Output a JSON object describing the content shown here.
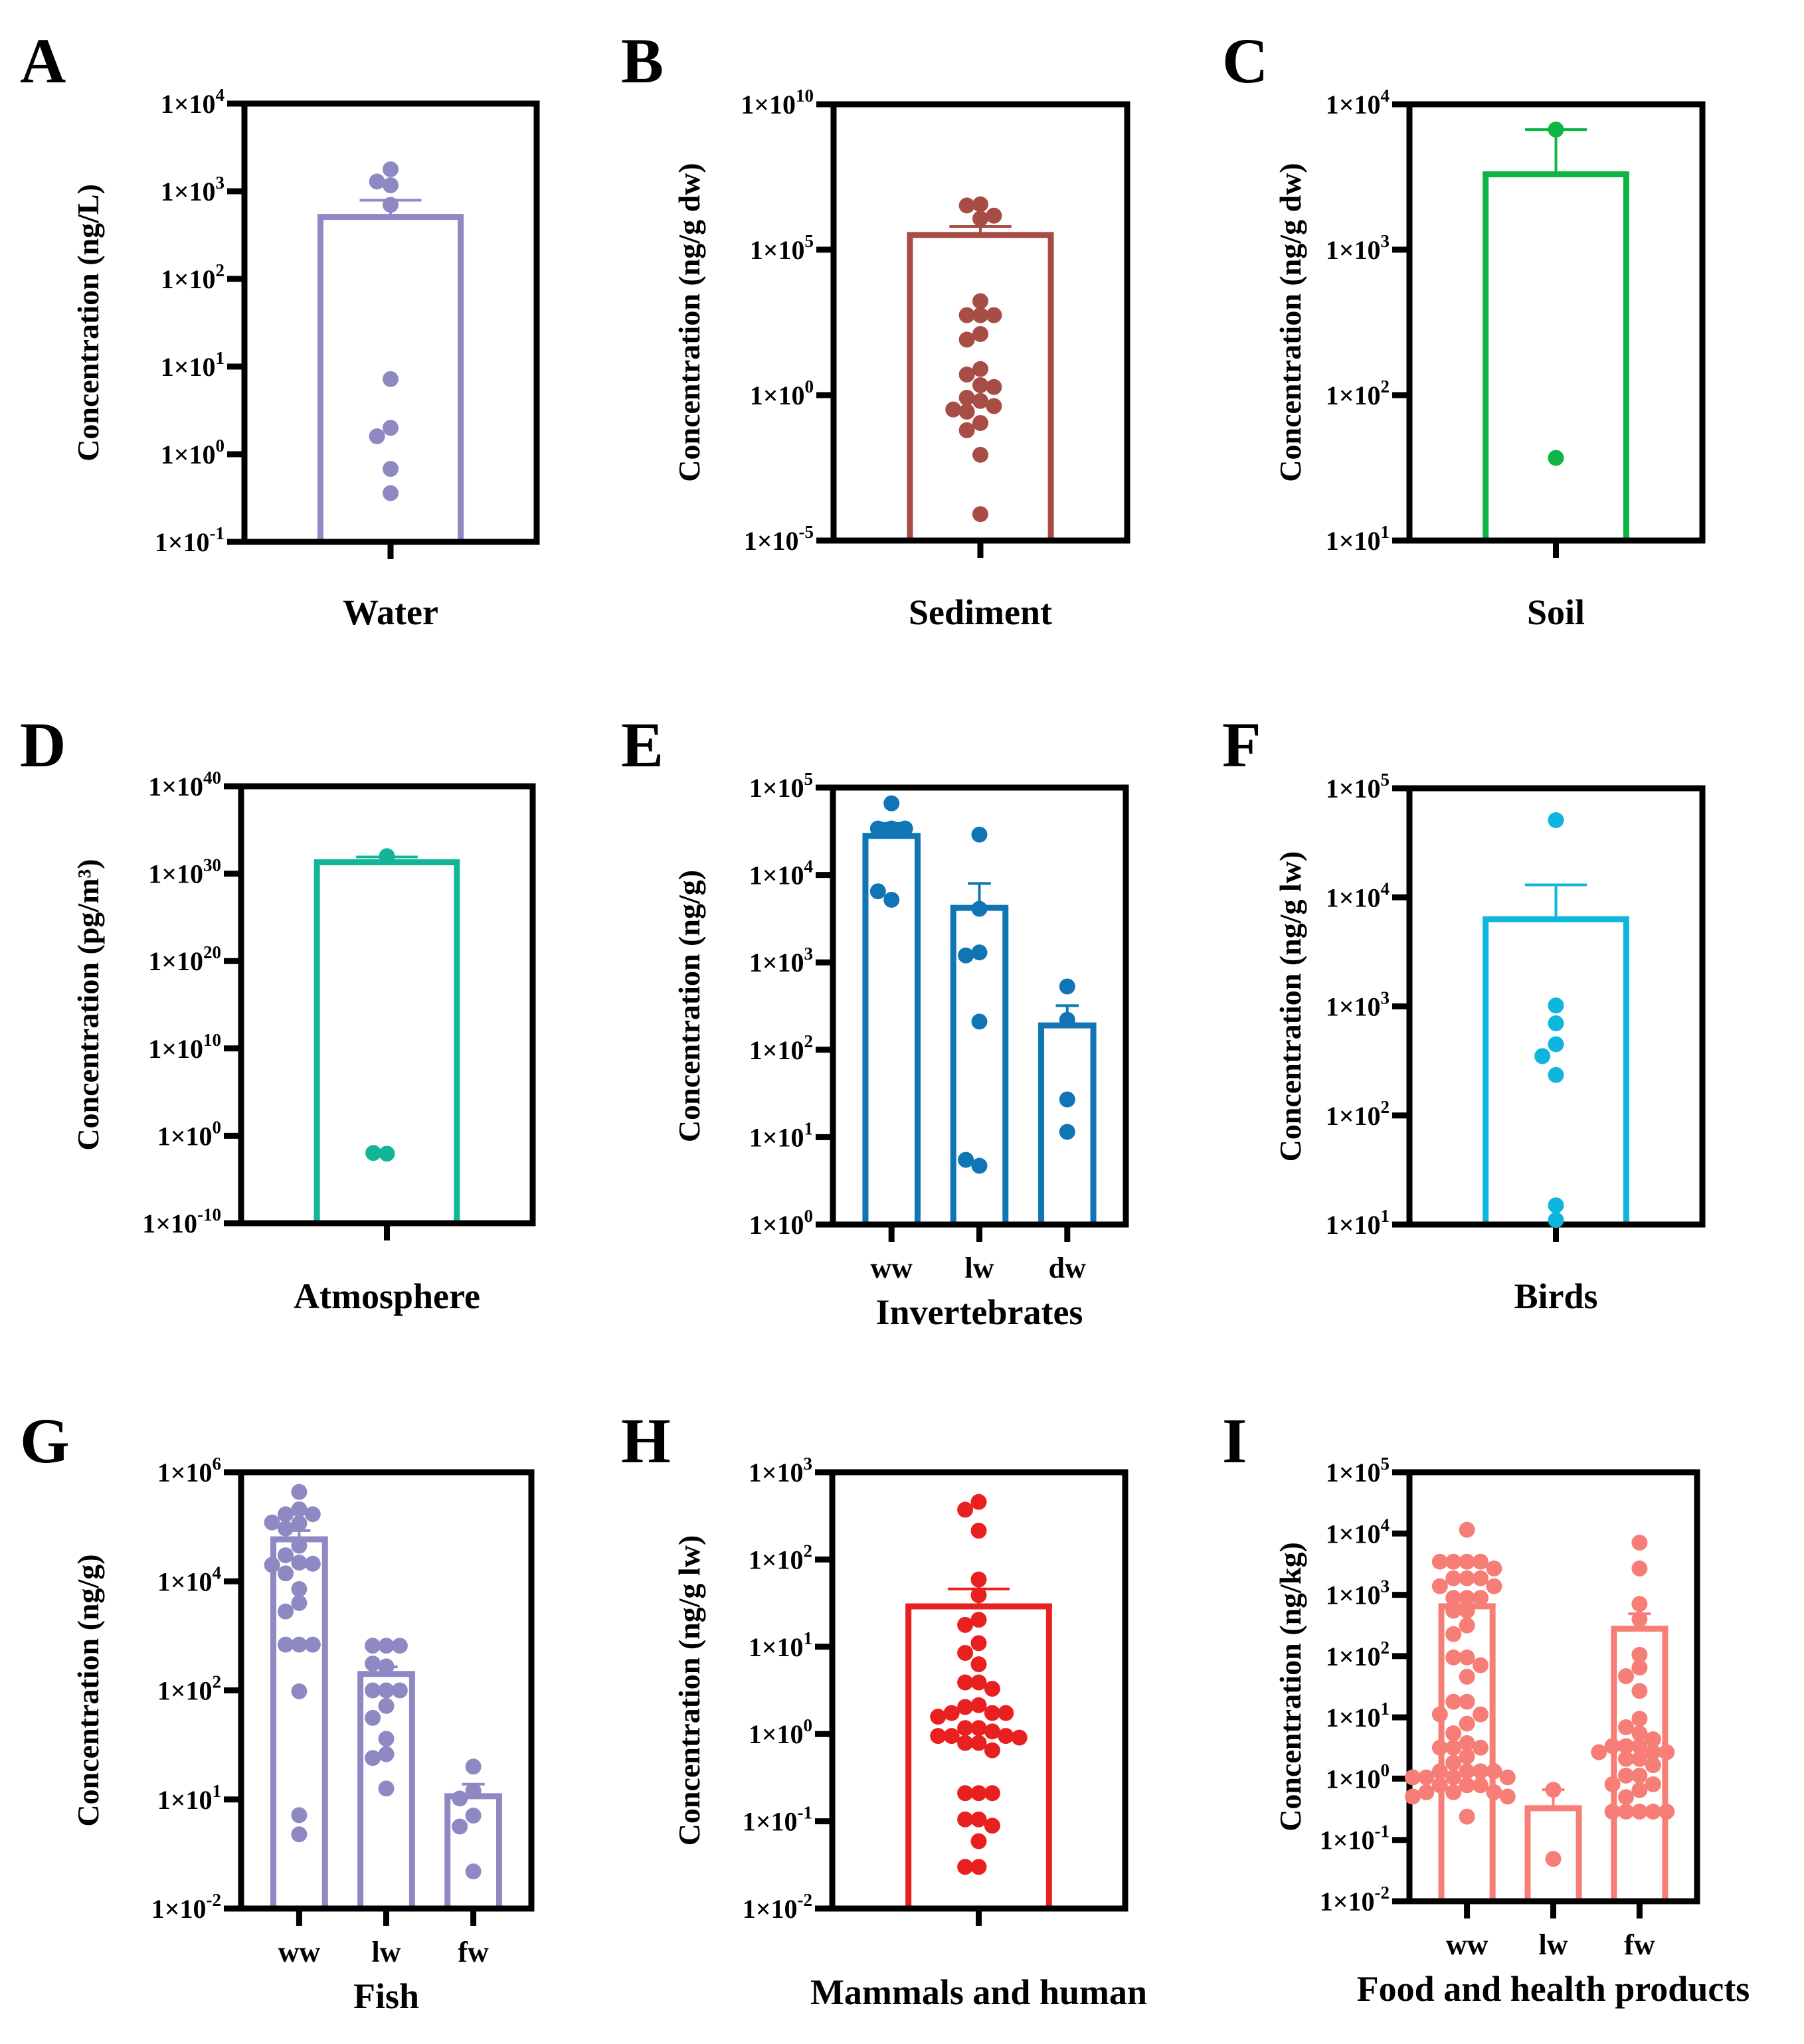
{
  "chart_data": [
    {
      "id": "A",
      "type": "bar",
      "panel_label": "A",
      "title": "",
      "xlabel": "Water",
      "ylabel": "Concentration (ng/L)",
      "yscale": "log",
      "ylim": [
        0.1,
        10000
      ],
      "ticks": [
        {
          "value": 10000,
          "base": "1×10",
          "exp": "4"
        },
        {
          "value": 1000,
          "base": "1×10",
          "exp": "3"
        },
        {
          "value": 100,
          "base": "1×10",
          "exp": "2"
        },
        {
          "value": 10,
          "base": "1×10",
          "exp": "1"
        },
        {
          "value": 1,
          "base": "1×10",
          "exp": "0"
        },
        {
          "value": 0.1,
          "base": "1×10",
          "exp": "-1"
        }
      ],
      "categories": [
        ""
      ],
      "color": "#8E89C3",
      "bars": [
        {
          "category": "",
          "mean": 510,
          "error_upper": 790,
          "points": [
            1780,
            1170,
            1290,
            700,
            7.2,
            2.0,
            1.6,
            0.68,
            0.36
          ]
        }
      ]
    },
    {
      "id": "B",
      "type": "bar",
      "panel_label": "B",
      "title": "",
      "xlabel": "Sediment",
      "ylabel": "Concentration (ng/g dw)",
      "yscale": "log",
      "ylim": [
        1e-05,
        10000000000.0
      ],
      "ticks": [
        {
          "value": 10000000000.0,
          "base": "1×10",
          "exp": "10"
        },
        {
          "value": 100000.0,
          "base": "1×10",
          "exp": "5"
        },
        {
          "value": 1,
          "base": "1×10",
          "exp": "0"
        },
        {
          "value": 1e-05,
          "base": "1×10",
          "exp": "-5"
        }
      ],
      "categories": [
        ""
      ],
      "color": "#A84D45",
      "bars": [
        {
          "category": "",
          "mean": 320000,
          "error_upper": 630000,
          "points": [
            3630000,
            3310000,
            1480000,
            1170000,
            1700,
            560,
            560,
            560,
            126,
            81,
            7.9,
            5.1,
            2.2,
            1.9,
            0.81,
            0.63,
            0.42,
            0.32,
            0.27,
            0.11,
            0.062,
            0.0089,
            8.1e-05
          ]
        }
      ]
    },
    {
      "id": "C",
      "type": "bar",
      "panel_label": "C",
      "title": "",
      "xlabel": "Soil",
      "ylabel": "Concentration (ng/g dw)",
      "yscale": "log",
      "ylim": [
        10,
        10000
      ],
      "ticks": [
        {
          "value": 10000,
          "base": "1×10",
          "exp": "4"
        },
        {
          "value": 1000,
          "base": "1×10",
          "exp": "3"
        },
        {
          "value": 100,
          "base": "1×10",
          "exp": "2"
        },
        {
          "value": 10,
          "base": "1×10",
          "exp": "1"
        }
      ],
      "categories": [
        ""
      ],
      "color": "#0DB544",
      "bars": [
        {
          "category": "",
          "mean": 3300,
          "error_upper": 6700,
          "points": [
            6700,
            37
          ]
        }
      ]
    },
    {
      "id": "D",
      "type": "bar",
      "panel_label": "D",
      "title": "",
      "xlabel": "Atmosphere",
      "ylabel": "Concentration (pg/m³)",
      "yscale": "log",
      "ylim": [
        1e-10,
        1e+40
      ],
      "ticks": [
        {
          "value": 1e+40,
          "base": "1×10",
          "exp": "40"
        },
        {
          "value": 1e+30,
          "base": "1×10",
          "exp": "30"
        },
        {
          "value": 1e+20,
          "base": "1×10",
          "exp": "20"
        },
        {
          "value": 10000000000.0,
          "base": "1×10",
          "exp": "10"
        },
        {
          "value": 1,
          "base": "1×10",
          "exp": "0"
        },
        {
          "value": 1e-10,
          "base": "1×10",
          "exp": "-10"
        }
      ],
      "categories": [
        ""
      ],
      "color": "#12B596",
      "bars": [
        {
          "category": "",
          "mean": 2e+31,
          "error_upper": 8e+31,
          "points": [
            1e+32,
            0.009,
            0.011
          ]
        }
      ]
    },
    {
      "id": "E",
      "type": "bar",
      "panel_label": "E",
      "title": "",
      "xlabel": "Invertebrates",
      "ylabel": "Concentration (ng/g)",
      "yscale": "log",
      "ylim": [
        1,
        100000
      ],
      "ticks": [
        {
          "value": 100000,
          "base": "1×10",
          "exp": "5"
        },
        {
          "value": 10000,
          "base": "1×10",
          "exp": "4"
        },
        {
          "value": 1000,
          "base": "1×10",
          "exp": "3"
        },
        {
          "value": 100,
          "base": "1×10",
          "exp": "2"
        },
        {
          "value": 10,
          "base": "1×10",
          "exp": "1"
        },
        {
          "value": 1,
          "base": "1×10",
          "exp": "0"
        }
      ],
      "categories": [
        "ww",
        "lw",
        "dw"
      ],
      "color": "#0F75B5",
      "bars": [
        {
          "category": "ww",
          "mean": 28000,
          "error_upper": 39000,
          "points": [
            66000,
            34000,
            34000,
            34000,
            5200,
            6500
          ]
        },
        {
          "category": "lw",
          "mean": 4200,
          "error_upper": 8000,
          "points": [
            29000,
            4100,
            1300,
            1200,
            210,
            4.7,
            5.5
          ]
        },
        {
          "category": "dw",
          "mean": 190,
          "error_upper": 320,
          "points": [
            530,
            220,
            27,
            11.5
          ]
        }
      ]
    },
    {
      "id": "F",
      "type": "bar",
      "panel_label": "F",
      "title": "",
      "xlabel": "Birds",
      "ylabel": "Concentration (ng/g lw)",
      "yscale": "log",
      "ylim": [
        10,
        100000
      ],
      "ticks": [
        {
          "value": 100000,
          "base": "1×10",
          "exp": "5"
        },
        {
          "value": 10000,
          "base": "1×10",
          "exp": "4"
        },
        {
          "value": 1000,
          "base": "1×10",
          "exp": "3"
        },
        {
          "value": 100,
          "base": "1×10",
          "exp": "2"
        },
        {
          "value": 10,
          "base": "1×10",
          "exp": "1"
        }
      ],
      "categories": [
        ""
      ],
      "color": "#0EB5DD",
      "bars": [
        {
          "category": "",
          "mean": 6300,
          "error_upper": 13000,
          "points": [
            51000,
            1020,
            700,
            450,
            350,
            235,
            15,
            11
          ]
        }
      ]
    },
    {
      "id": "G",
      "type": "bar",
      "panel_label": "G",
      "title": "",
      "xlabel": "Fish",
      "ylabel": "Concentration (ng/g)",
      "yscale": "segmented-log",
      "ylim": [
        0.01,
        1000000
      ],
      "ticks": [
        {
          "value": 1000000,
          "base": "1×10",
          "exp": "6"
        },
        {
          "value": 10000,
          "base": "1×10",
          "exp": "4"
        },
        {
          "value": 100,
          "base": "1×10",
          "exp": "2"
        },
        {
          "value": 10,
          "base": "1×10",
          "exp": "1"
        },
        {
          "value": 0.01,
          "base": "1×10",
          "exp": "-2"
        }
      ],
      "categories": [
        "ww",
        "lw",
        "fw"
      ],
      "color": "#8E89C3",
      "bars": [
        {
          "category": "ww",
          "mean": 59000,
          "error_upper": 85000,
          "points": [
            436000,
            209000,
            170000,
            170000,
            115000,
            93000,
            120000,
            45000,
            30000,
            22000,
            21000,
            20000,
            14000,
            7200,
            4000,
            2800,
            690,
            690,
            690,
            98,
            3.7,
            1.1
          ]
        },
        {
          "category": "lw",
          "mean": 200,
          "error_upper": 270,
          "points": [
            660,
            660,
            660,
            275,
            310,
            100,
            100,
            100,
            72,
            56,
            36,
            26,
            24,
            12.6
          ]
        },
        {
          "category": "fw",
          "mean": 10.7,
          "error_upper": 13.8,
          "points": [
            20,
            12,
            10.2,
            3.6,
            1.8,
            0.105
          ]
        }
      ]
    },
    {
      "id": "H",
      "type": "bar",
      "panel_label": "H",
      "title": "",
      "xlabel": "Mammals and human",
      "ylabel": "Concentration (ng/g lw)",
      "yscale": "log",
      "ylim": [
        0.01,
        1000
      ],
      "ticks": [
        {
          "value": 1000,
          "base": "1×10",
          "exp": "3"
        },
        {
          "value": 100,
          "base": "1×10",
          "exp": "2"
        },
        {
          "value": 10,
          "base": "1×10",
          "exp": "1"
        },
        {
          "value": 1,
          "base": "1×10",
          "exp": "0"
        },
        {
          "value": 0.1,
          "base": "1×10",
          "exp": "-1"
        },
        {
          "value": 0.01,
          "base": "1×10",
          "exp": "-2"
        }
      ],
      "categories": [
        ""
      ],
      "color": "#E8201F",
      "bars": [
        {
          "category": "",
          "mean": 29,
          "error_upper": 46,
          "points": [
            457,
            372,
            214,
            59,
            39,
            20.4,
            17.8,
            11,
            8.5,
            6.3,
            3.9,
            3.9,
            3.3,
            2.14,
            2.04,
            1.74,
            1.74,
            1.74,
            1.58,
            1.17,
            1.17,
            1.07,
            0.95,
            0.95,
            0.95,
            0.91,
            0.79,
            0.79,
            0.65,
            0.21,
            0.21,
            0.21,
            0.105,
            0.105,
            0.089,
            0.059,
            0.03,
            0.03
          ]
        }
      ]
    },
    {
      "id": "I",
      "type": "bar",
      "panel_label": "I",
      "title": "",
      "xlabel": "Food and health products",
      "ylabel": "Concentration (ng/kg)",
      "yscale": "log",
      "ylim": [
        0.01,
        100000
      ],
      "ticks": [
        {
          "value": 100000,
          "base": "1×10",
          "exp": "5"
        },
        {
          "value": 10000,
          "base": "1×10",
          "exp": "4"
        },
        {
          "value": 1000,
          "base": "1×10",
          "exp": "3"
        },
        {
          "value": 100,
          "base": "1×10",
          "exp": "2"
        },
        {
          "value": 10,
          "base": "1×10",
          "exp": "1"
        },
        {
          "value": 1,
          "base": "1×10",
          "exp": "0"
        },
        {
          "value": 0.1,
          "base": "1×10",
          "exp": "-1"
        },
        {
          "value": 0.01,
          "base": "1×10",
          "exp": "-2"
        }
      ],
      "categories": [
        "ww",
        "lw",
        "fw"
      ],
      "color": "#F77E76",
      "bars": [
        {
          "category": "ww",
          "mean": 650,
          "error_upper": 930,
          "points": [
            11500,
            3470,
            3470,
            3470,
            3470,
            2690,
            1860,
            1860,
            1860,
            1380,
            1380,
            890,
            890,
            890,
            550,
            550,
            316,
            229,
            95,
            95,
            71,
            46,
            18,
            18,
            11.2,
            11.2,
            7.9,
            5.5,
            3.8,
            3.2,
            3.2,
            3.2,
            2.3,
            1.82,
            1.32,
            1.32,
            1.32,
            1.32,
            1.05,
            1.05,
            1.05,
            1.05,
            0.78,
            0.78,
            0.78,
            0.6,
            0.6,
            0.6,
            0.51,
            0.51,
            0.24
          ]
        },
        {
          "category": "lw",
          "mean": 0.33,
          "error_upper": 0.66,
          "points": [
            0.66,
            0.049
          ]
        },
        {
          "category": "fw",
          "mean": 280,
          "error_upper": 490,
          "points": [
            7100,
            2690,
            710,
            400,
            105,
            65,
            47,
            27,
            9.5,
            6.9,
            5.5,
            4.4,
            3.4,
            3.4,
            3.4,
            2.7,
            2.7,
            2.7,
            2.1,
            2.1,
            1.66,
            1.12,
            1.12,
            0.81,
            0.81,
            0.65,
            0.5,
            0.29,
            0.29,
            0.29,
            0.29,
            0.29
          ]
        }
      ]
    }
  ]
}
